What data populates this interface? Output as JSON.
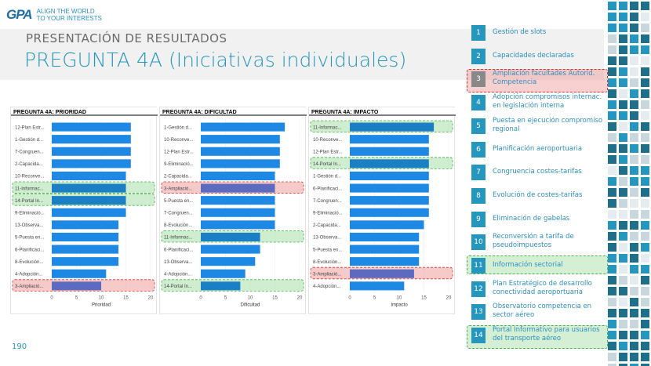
{
  "logo": {
    "mark": "GPA",
    "tagline_1": "ALIGN THE WORLD",
    "tagline_2": "TO YOUR INTERESTS"
  },
  "header": {
    "subtitle": "PRESENTACIÓN DE RESULTADOS",
    "title": "PREGUNTA 4A (Iniciativas individuales)"
  },
  "page_number": "190",
  "colors": {
    "accent": "#2596be",
    "bar": "#1e88e5",
    "bar_highlight": "#5c6bc0",
    "highlight_red": "#f2a5a5",
    "highlight_green": "#b9e4bf"
  },
  "chart_data": [
    {
      "type": "bar",
      "orientation": "horizontal",
      "title": "PREGUNTA 4A: PRIORIDAD",
      "xlabel": "Prioridad",
      "xlim": [
        0,
        20
      ],
      "ticks": [
        "0",
        "5",
        "10",
        "15",
        "20"
      ],
      "categories": [
        "12-Plan Estr...",
        "1-Gestión d...",
        "7-Congruen...",
        "2-Capacida...",
        "10-Reconve...",
        "11-Informac...",
        "14-Portal In...",
        "9-Eliminació...",
        "13-Observa...",
        "5-Puesta en...",
        "6-Planificaci...",
        "8-Evolución...",
        "4-Adopción...",
        "3-Ampliació..."
      ],
      "values": [
        16,
        16,
        16,
        16,
        15,
        15,
        15,
        15,
        13.5,
        13.5,
        13.5,
        13.5,
        11,
        10
      ],
      "highlight": [
        "none",
        "none",
        "none",
        "none",
        "none",
        "green",
        "green",
        "none",
        "none",
        "none",
        "none",
        "none",
        "none",
        "red"
      ]
    },
    {
      "type": "bar",
      "orientation": "horizontal",
      "title": "PREGUNTA 4A: DIFICULTAD",
      "xlabel": "Dificultad",
      "xlim": [
        0,
        20
      ],
      "ticks": [
        "0",
        "5",
        "10",
        "15",
        "20"
      ],
      "categories": [
        "1-Gestión d...",
        "10-Reconve...",
        "12-Plan Estr...",
        "9-Eliminació...",
        "2-Capacida...",
        "3-Ampliació...",
        "5-Puesta en...",
        "7-Congruen...",
        "8-Evolución...",
        "11-Informac...",
        "6-Planificaci...",
        "13-Observa...",
        "4-Adopción...",
        "14-Portal In..."
      ],
      "values": [
        17,
        16,
        16,
        16,
        15,
        15,
        15,
        15,
        15,
        12,
        12,
        11,
        9,
        8
      ],
      "highlight": [
        "none",
        "none",
        "none",
        "none",
        "none",
        "red",
        "none",
        "none",
        "none",
        "green",
        "none",
        "none",
        "none",
        "green"
      ]
    },
    {
      "type": "bar",
      "orientation": "horizontal",
      "title": "PREGUNTA 4A: IMPACTO",
      "xlabel": "Impacto",
      "xlim": [
        0,
        20
      ],
      "ticks": [
        "0",
        "5",
        "10",
        "15",
        "20"
      ],
      "categories": [
        "11-Informac...",
        "10-Reconve...",
        "12-Plan Estr...",
        "14-Portal In...",
        "1-Gestión d...",
        "6-Planificaci...",
        "7-Congruen...",
        "9-Eliminació...",
        "2-Capacida...",
        "13-Observa...",
        "5-Puesta en...",
        "8-Evolución...",
        "3-Ampliació...",
        "4-Adopción..."
      ],
      "values": [
        17,
        16,
        16,
        16,
        16,
        16,
        16,
        16,
        15,
        14,
        14,
        14,
        13,
        11
      ],
      "highlight": [
        "green",
        "none",
        "none",
        "green",
        "none",
        "none",
        "none",
        "none",
        "none",
        "none",
        "none",
        "none",
        "red",
        "none"
      ]
    }
  ],
  "legend": [
    {
      "num": "1",
      "text": "Gestión de slots",
      "hl": "none"
    },
    {
      "num": "2",
      "text": "Capacidades declaradas",
      "hl": "none"
    },
    {
      "num": "3",
      "text": "Ampliación facultades Autorid. Competencia",
      "hl": "red"
    },
    {
      "num": "4",
      "text": "Adopción compromisos internac. en legislación interna",
      "hl": "none"
    },
    {
      "num": "5",
      "text": "Puesta en ejecución compromiso regional",
      "hl": "none"
    },
    {
      "num": "6",
      "text": "Planificación aeroportuaria",
      "hl": "none"
    },
    {
      "num": "7",
      "text": "Congruencia costes-tarifas",
      "hl": "none"
    },
    {
      "num": "8",
      "text": "Evolución de costes-tarifas",
      "hl": "none"
    },
    {
      "num": "9",
      "text": "Eliminación de gabelas",
      "hl": "none"
    },
    {
      "num": "10",
      "text": "Reconversión a tarifa de pseudoimpuestos",
      "hl": "none"
    },
    {
      "num": "11",
      "text": "Información sectorial",
      "hl": "green"
    },
    {
      "num": "12",
      "text": "Plan Estratégico de desarrollo conectividad aeroportuaria",
      "hl": "none"
    },
    {
      "num": "13",
      "text": "Observatorio competencia en sector aéreo",
      "hl": "none"
    },
    {
      "num": "14",
      "text": "Portal Informativo para usuarios del transporte aéreo",
      "hl": "green"
    }
  ]
}
